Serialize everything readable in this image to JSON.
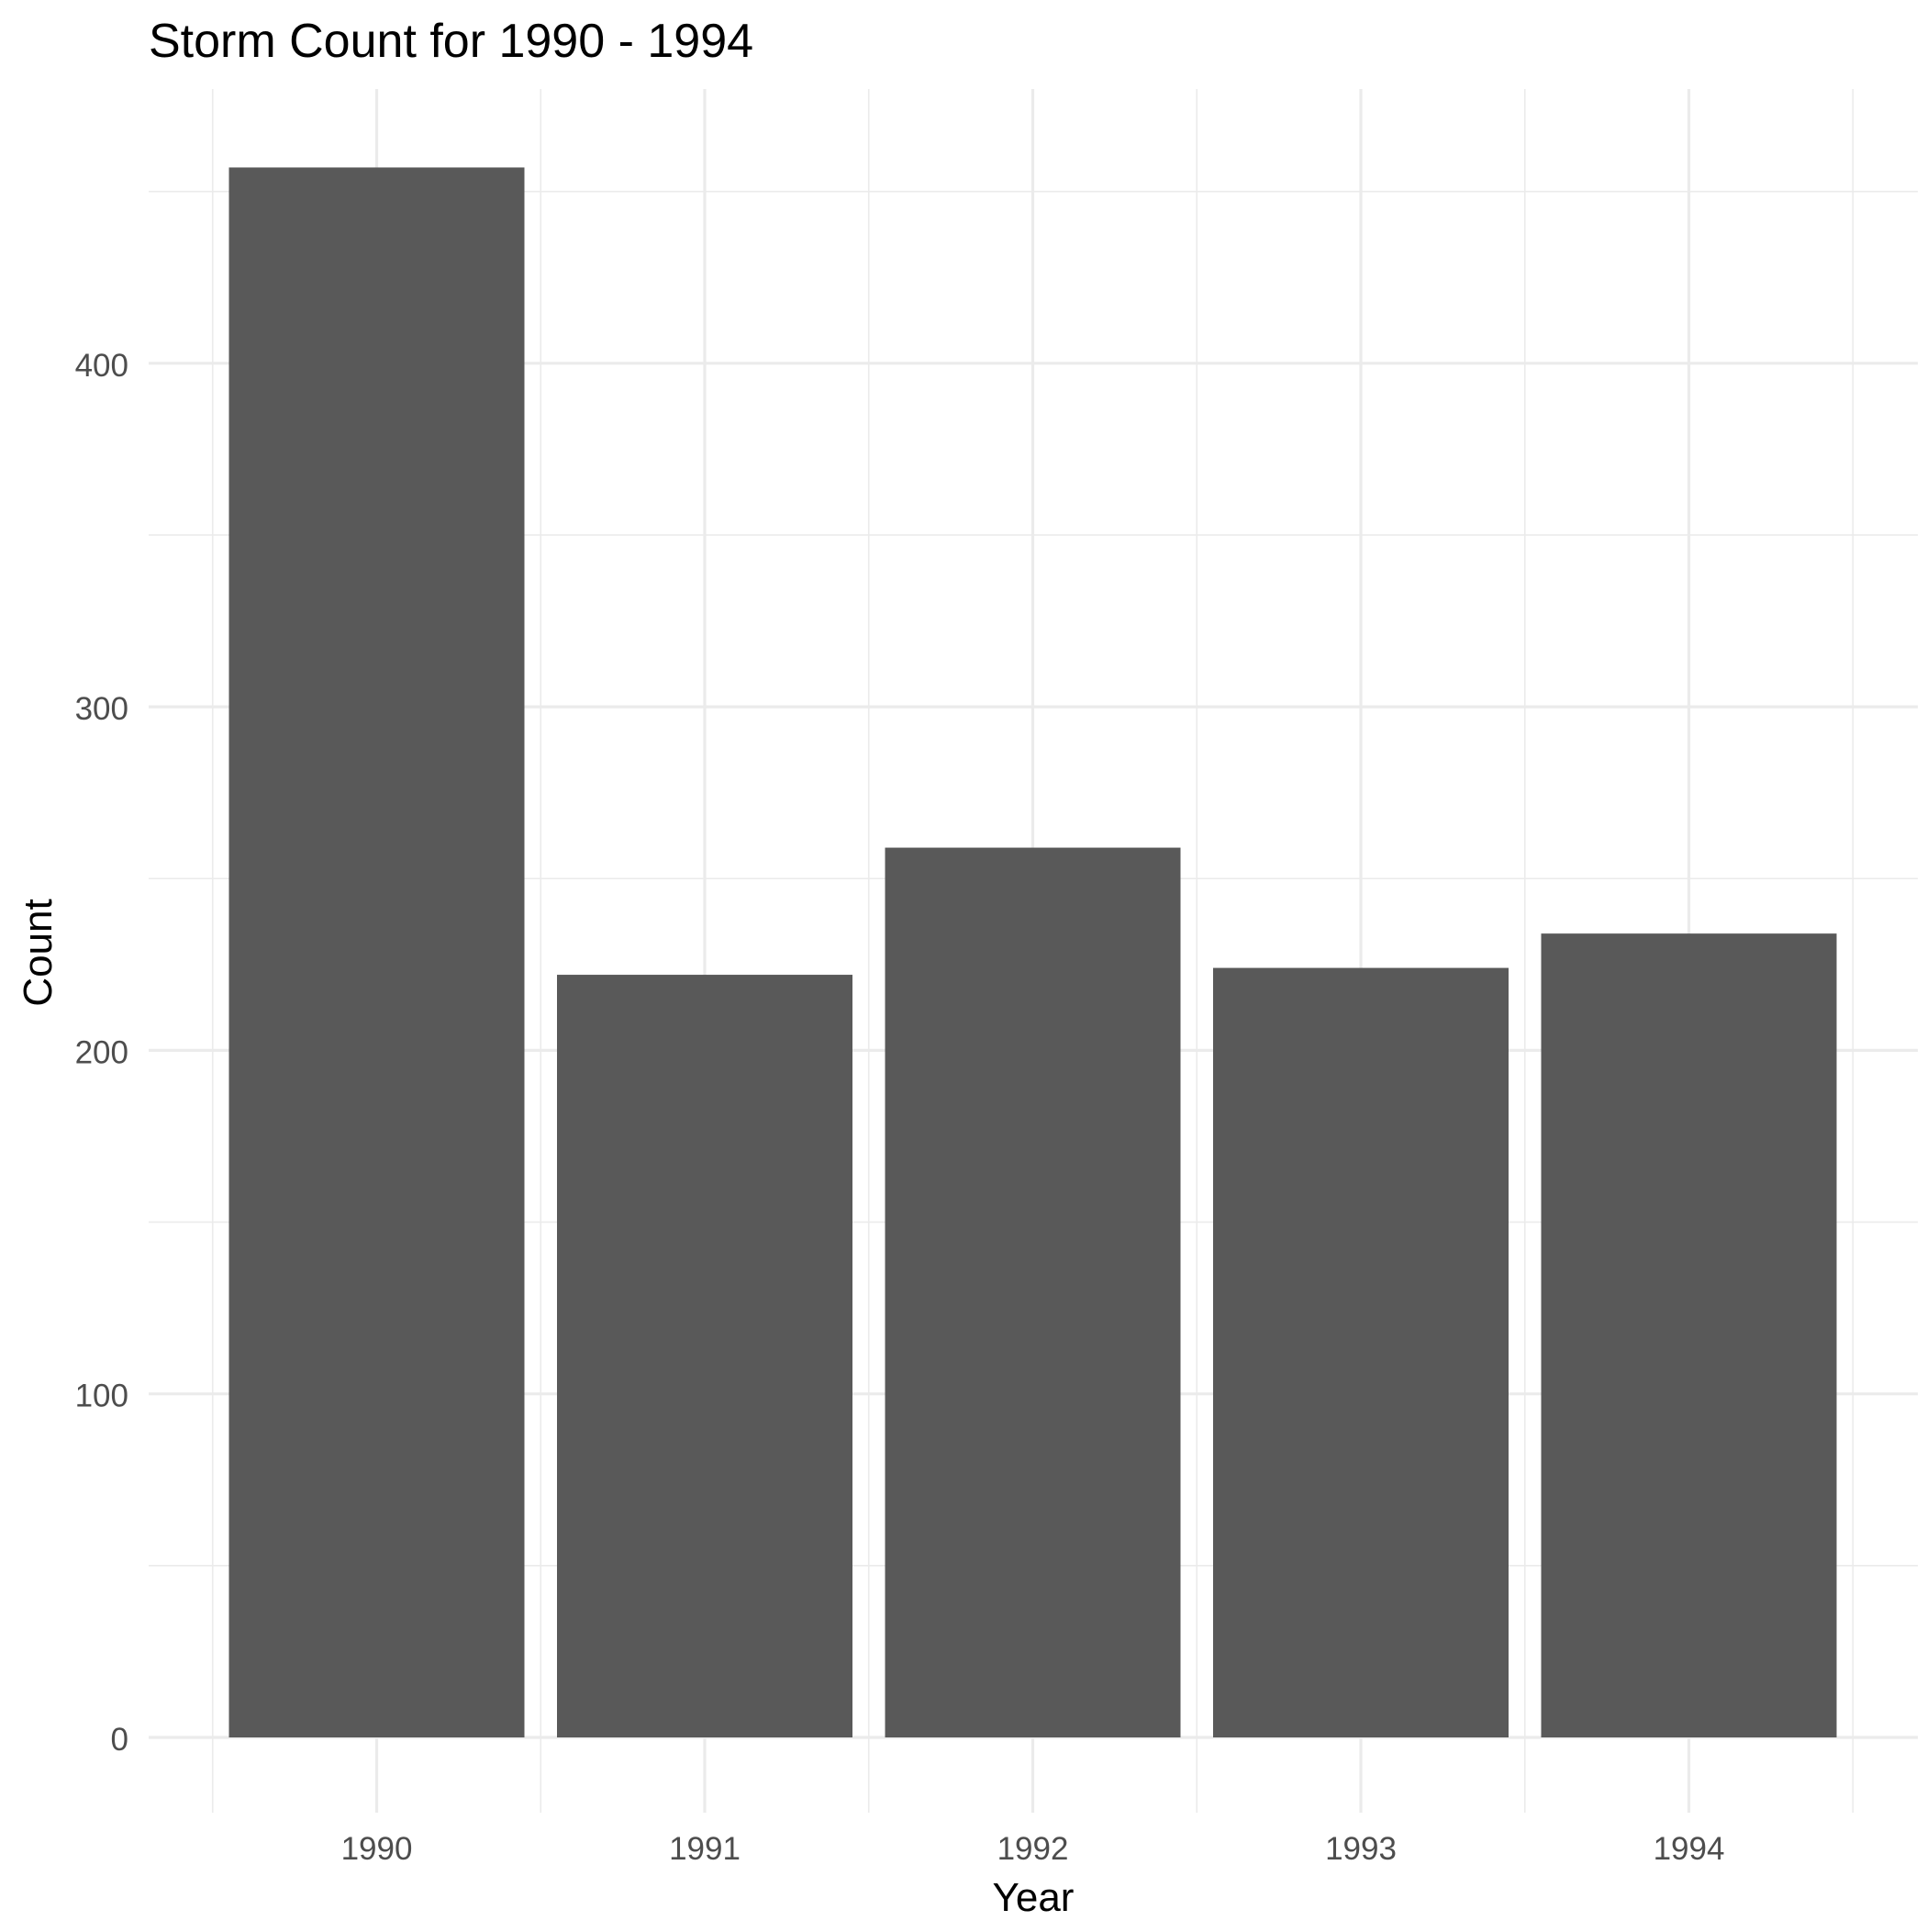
{
  "chart_data": {
    "type": "bar",
    "title": "Storm Count for 1990 - 1994",
    "xlabel": "Year",
    "ylabel": "Count",
    "categories": [
      "1990",
      "1991",
      "1992",
      "1993",
      "1994"
    ],
    "values": [
      457,
      222,
      259,
      224,
      234
    ],
    "ylim": [
      0,
      460
    ],
    "yticks": [
      0,
      100,
      200,
      300,
      400
    ],
    "grid": true,
    "bar_color": "#595959",
    "grid_color": "#ebebeb",
    "axis_text_color": "#4d4d4d",
    "title_color": "#000000"
  }
}
